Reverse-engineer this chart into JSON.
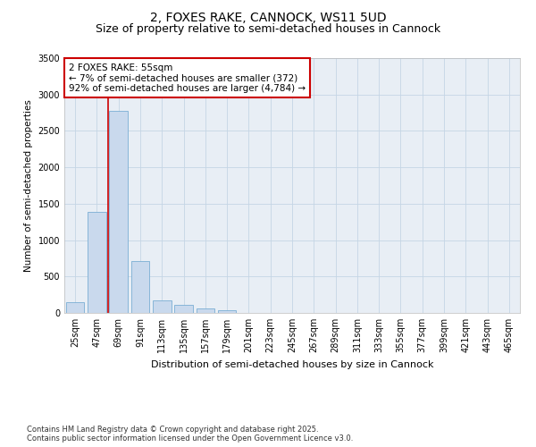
{
  "title": "2, FOXES RAKE, CANNOCK, WS11 5UD",
  "subtitle": "Size of property relative to semi-detached houses in Cannock",
  "xlabel": "Distribution of semi-detached houses by size in Cannock",
  "ylabel": "Number of semi-detached properties",
  "categories": [
    "25sqm",
    "47sqm",
    "69sqm",
    "91sqm",
    "113sqm",
    "135sqm",
    "157sqm",
    "179sqm",
    "201sqm",
    "223sqm",
    "245sqm",
    "267sqm",
    "289sqm",
    "311sqm",
    "333sqm",
    "355sqm",
    "377sqm",
    "399sqm",
    "421sqm",
    "443sqm",
    "465sqm"
  ],
  "values": [
    150,
    1390,
    2780,
    710,
    175,
    105,
    60,
    40,
    0,
    0,
    0,
    0,
    0,
    0,
    0,
    0,
    0,
    0,
    0,
    0,
    0
  ],
  "bar_color": "#c9d9ed",
  "bar_edge_color": "#7aaed4",
  "vline_color": "#cc0000",
  "annotation_text": "2 FOXES RAKE: 55sqm\n← 7% of semi-detached houses are smaller (372)\n92% of semi-detached houses are larger (4,784) →",
  "annotation_box_color": "#ffffff",
  "annotation_box_edge": "#cc0000",
  "ylim": [
    0,
    3500
  ],
  "yticks": [
    0,
    500,
    1000,
    1500,
    2000,
    2500,
    3000,
    3500
  ],
  "footer_text": "Contains HM Land Registry data © Crown copyright and database right 2025.\nContains public sector information licensed under the Open Government Licence v3.0.",
  "background_color": "#ffffff",
  "plot_background": "#e8eef5",
  "grid_color": "#c5d5e5",
  "title_fontsize": 10,
  "subtitle_fontsize": 9,
  "ylabel_fontsize": 7.5,
  "xlabel_fontsize": 8,
  "tick_fontsize": 7,
  "annotation_fontsize": 7.5,
  "footer_fontsize": 6
}
